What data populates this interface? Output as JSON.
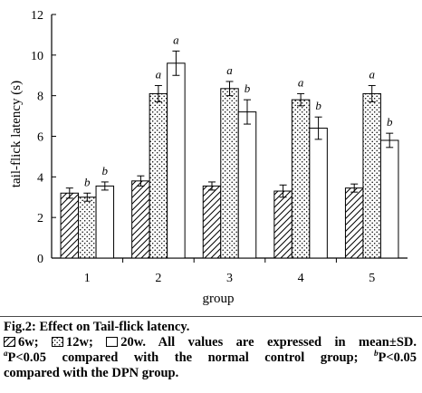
{
  "chart_data": {
    "type": "bar",
    "xlabel": "group",
    "ylabel": "tail-flick latency (s)",
    "ylim": [
      0,
      12
    ],
    "yticks": [
      0,
      2,
      4,
      6,
      8,
      10,
      12
    ],
    "categories": [
      "1",
      "2",
      "3",
      "4",
      "5"
    ],
    "series": [
      {
        "name": "6w",
        "pattern": "hatch",
        "values": [
          3.2,
          3.8,
          3.55,
          3.3,
          3.45
        ],
        "errors": [
          0.25,
          0.25,
          0.2,
          0.3,
          0.2
        ],
        "annotations": [
          "",
          "",
          "",
          "",
          ""
        ]
      },
      {
        "name": "12w",
        "pattern": "dots",
        "values": [
          3.0,
          8.1,
          8.35,
          7.8,
          8.1
        ],
        "errors": [
          0.2,
          0.4,
          0.35,
          0.3,
          0.4
        ],
        "annotations": [
          "b",
          "a",
          "a",
          "a",
          "a"
        ]
      },
      {
        "name": "20w",
        "pattern": "empty",
        "values": [
          3.55,
          9.6,
          7.2,
          6.4,
          5.8
        ],
        "errors": [
          0.2,
          0.6,
          0.6,
          0.55,
          0.35
        ],
        "annotations": [
          "b",
          "a",
          "b",
          "b",
          "b"
        ]
      }
    ],
    "grid": false
  },
  "caption": {
    "title": "Fig.2: Effect on Tail-flick latency.",
    "legend_6w": "6w;",
    "legend_12w": "12w;",
    "legend_20w": "20w.",
    "note_values": "All values are expressed in mean±SD.",
    "sup_a": "a",
    "note_a": "P<0.05 compared with the normal control group;",
    "sup_b": "b",
    "note_b": "P<0.05",
    "note_b_cont": "compared with the DPN group."
  }
}
